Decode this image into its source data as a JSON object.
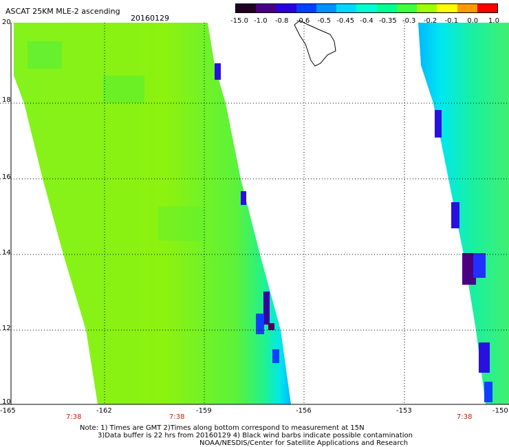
{
  "header": {
    "title": "ASCAT 25KM MLE-2 ascending",
    "date": "20160129"
  },
  "colorbar": {
    "labels": [
      "-15.0",
      "-1.0",
      "-0.8",
      "-0.6",
      "-0.5",
      "-0.45",
      "-0.4",
      "-0.35",
      "-0.3",
      "-0.2",
      "-0.1",
      "0.0",
      "1.0"
    ],
    "colors": [
      "#200020",
      "#4a0080",
      "#2a00e0",
      "#0040ff",
      "#0090ff",
      "#00d8ff",
      "#00ffd0",
      "#00ff90",
      "#40ff40",
      "#a0ff00",
      "#ffff00",
      "#ff9900",
      "#ff0000"
    ]
  },
  "axes": {
    "lat_labels": [
      "20",
      "18",
      "16",
      "14",
      "12",
      "10"
    ],
    "lon_labels": [
      "-165",
      "-162",
      "-159",
      "-156",
      "-153",
      "-150"
    ],
    "time_labels": [
      "7:38",
      "7:38",
      "7:38"
    ]
  },
  "notes": {
    "line1": "Note: 1) Times are GMT 2)Times along bottom correspond to measurement at 15N",
    "line2": "3)Data buffer is 22 hrs from 20160129 4) Black wind barbs indicate possible contamination",
    "line3": "NOAA/NESDIS/Center for Satellite Applications and Research"
  }
}
